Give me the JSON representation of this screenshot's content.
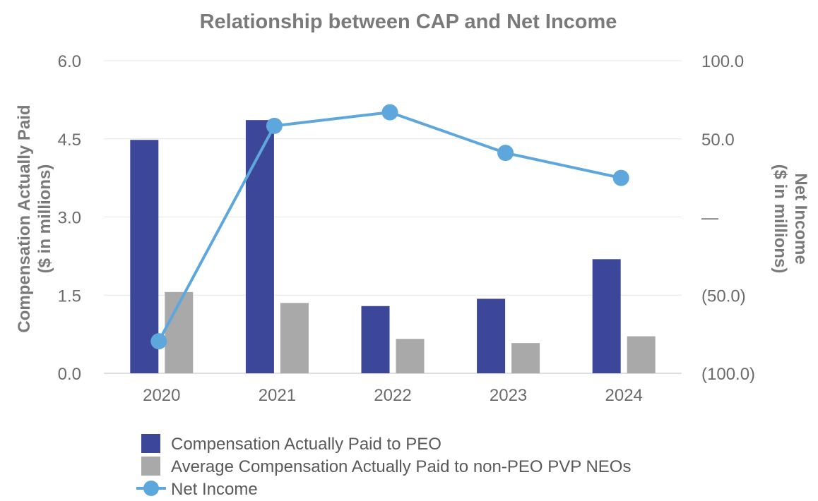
{
  "chart_data": {
    "type": "bar",
    "title": "Relationship between CAP and Net Income",
    "categories": [
      "2020",
      "2021",
      "2022",
      "2023",
      "2024"
    ],
    "left_axis": {
      "label_line1": "Compensation Actually Paid",
      "label_line2": "($ in millions)",
      "ylim": [
        0,
        6
      ],
      "ticks": [
        0,
        1.5,
        3,
        4.5,
        6
      ],
      "tick_labels": [
        "0.0",
        "1.5",
        "3.0",
        "4.5",
        "6.0"
      ]
    },
    "right_axis": {
      "label_line1": "Net Income",
      "label_line2": "($ in millions)",
      "ylim": [
        -100,
        100
      ],
      "ticks": [
        -100,
        -50,
        0,
        50,
        100
      ],
      "tick_labels": [
        "(100.0)",
        "(50.0)",
        "—",
        "50.0",
        "100.0"
      ]
    },
    "series": [
      {
        "name": "Compensation Actually Paid to PEO",
        "type": "bar",
        "axis": "left",
        "color": "#3d4799",
        "values": [
          4.48,
          4.86,
          1.29,
          1.43,
          2.19
        ]
      },
      {
        "name": "Average Compensation Actually Paid to non-PEO PVP NEOs",
        "type": "bar",
        "axis": "left",
        "color": "#a9a9a9",
        "values": [
          1.56,
          1.35,
          0.66,
          0.58,
          0.71
        ]
      },
      {
        "name": "Net Income",
        "type": "line",
        "axis": "right",
        "color": "#5ea7dc",
        "values": [
          -79.5,
          58.3,
          67.0,
          41.0,
          25.0
        ]
      }
    ],
    "legend_position": "bottom-center",
    "grid": true
  }
}
